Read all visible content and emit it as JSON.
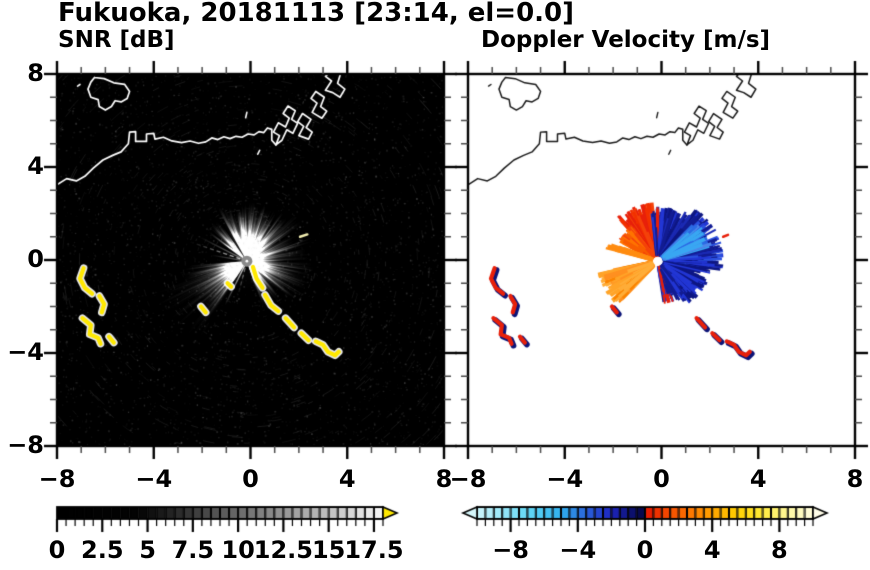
{
  "header": {
    "title": "Fukuoka, 20181113 [23:14, el=0.0]"
  },
  "panels": {
    "snr": {
      "subtitle": "SNR [dB]"
    },
    "doppler": {
      "subtitle": "Doppler Velocity [m/s]"
    }
  },
  "axes": {
    "range": [
      -8,
      8
    ],
    "major_ticks": [
      -8,
      -4,
      0,
      4,
      8
    ],
    "minor_step": 1,
    "x_labels": [
      "−8",
      "−4",
      "0",
      "4",
      "8"
    ],
    "y_labels": [
      "8",
      "4",
      "0",
      "−4",
      "−8"
    ],
    "y_values": [
      8,
      4,
      0,
      -4,
      -8
    ]
  },
  "colorbars": {
    "snr": {
      "min": 0,
      "max": 18,
      "segment": 0.5,
      "tick_values": [
        0,
        2.5,
        5,
        7.5,
        10,
        12.5,
        15,
        17.5
      ],
      "tick_labels": [
        "0",
        "2.5",
        "5",
        "7.5",
        "10",
        "12.5",
        "15",
        "17.5"
      ],
      "overflow_color": "#ffe800",
      "ramp": [
        [
          0,
          "#000000"
        ],
        [
          4.5,
          "#030303"
        ],
        [
          7.5,
          "#3a3a3a"
        ],
        [
          10,
          "#6a6a6a"
        ],
        [
          12.5,
          "#959595"
        ],
        [
          15,
          "#c0c0c0"
        ],
        [
          18,
          "#f6f6f6"
        ]
      ]
    },
    "doppler": {
      "min": -10,
      "max": 10,
      "segment": 0.5,
      "tick_values": [
        -8,
        -4,
        0,
        4,
        8
      ],
      "tick_labels": [
        "−8",
        "−4",
        "0",
        "4",
        "8"
      ],
      "underflow_color": "#d5f6fa",
      "overflow_color": "#fffde8",
      "ramp": [
        [
          -10,
          "#cdf4fa"
        ],
        [
          -7,
          "#63d9f6"
        ],
        [
          -5,
          "#2fb0ee"
        ],
        [
          -3.5,
          "#2a62da"
        ],
        [
          -2,
          "#1d25c0"
        ],
        [
          -0.8,
          "#0d1170"
        ],
        [
          -0.02,
          "#04063e"
        ],
        [
          0.02,
          "#e11400"
        ],
        [
          1,
          "#f23c00"
        ],
        [
          2.5,
          "#fe7000"
        ],
        [
          4,
          "#ffa200"
        ],
        [
          5.5,
          "#ffd000"
        ],
        [
          7,
          "#ffeb3a"
        ],
        [
          8.5,
          "#fff89e"
        ],
        [
          10,
          "#fffde0"
        ]
      ]
    }
  },
  "chart_data": {
    "type": "heatmap",
    "title": "Fukuoka, 20181113 [23:14, el=0.0]",
    "subplots": [
      "SNR [dB]",
      "Doppler Velocity [m/s]"
    ],
    "x_range": [
      -8,
      8
    ],
    "y_range": [
      -8,
      8
    ],
    "radar_center": [
      -0.15,
      -0.05
    ],
    "snr": {
      "background": "#000000",
      "center_disk_color": "#8a8a8a",
      "clutter_color": "#ffe800",
      "clutter_outline": "#ffffff",
      "noise": {
        "dots": 3200,
        "arcs": 900
      },
      "beam_sectors": [
        {
          "a0": 48,
          "a1": 118,
          "rmin": 0.8,
          "rmax": 2.6,
          "n": 180,
          "alpha": 0.5
        },
        {
          "a0": 112,
          "a1": 143,
          "rmin": 0.5,
          "rmax": 2.2,
          "n": 70,
          "alpha": 0.36
        },
        {
          "a0": -42,
          "a1": 48,
          "rmin": 0.7,
          "rmax": 2.9,
          "n": 160,
          "alpha": 0.3
        },
        {
          "a0": -70,
          "a1": -42,
          "rmin": 0.5,
          "rmax": 2.2,
          "n": 60,
          "alpha": 0.24
        },
        {
          "a0": 185,
          "a1": 237,
          "rmin": 0.7,
          "rmax": 2.8,
          "n": 120,
          "alpha": 0.3
        },
        {
          "a0": 198,
          "a1": 240,
          "rmin": 2.0,
          "rmax": 4.3,
          "n": 70,
          "alpha": 0.09
        },
        {
          "a0": 40,
          "a1": 122,
          "rmin": 0.22,
          "rmax": 1.05,
          "n": 140,
          "alpha": 0.6
        }
      ],
      "bright_rays": [
        {
          "a": 152,
          "r": 2.2,
          "alpha": 0.5,
          "dash": false
        },
        {
          "a": 160.5,
          "r": 2.5,
          "alpha": 0.85,
          "dash": true
        },
        {
          "a": 170,
          "r": 1.5,
          "alpha": 0.45,
          "dash": false
        },
        {
          "a": 188,
          "r": 1.9,
          "alpha": 0.4,
          "dash": false
        },
        {
          "a": 244.5,
          "r": 2.1,
          "alpha": 0.9,
          "dash": false
        },
        {
          "a": 256,
          "r": 1.6,
          "alpha": 0.5,
          "dash": true
        }
      ],
      "dark_wedges": [
        {
          "a0": 144,
          "a1": 159,
          "r": 3.2
        },
        {
          "a0": 162,
          "a1": 184,
          "r": 3.2
        },
        {
          "a0": 237,
          "a1": 243.5,
          "r": 3.0
        },
        {
          "a0": 245.5,
          "a1": 255,
          "r": 3.0
        },
        {
          "a0": 257,
          "a1": 287,
          "r": 3.4
        },
        {
          "a0": 119,
          "a1": 125,
          "r": 3.0
        }
      ]
    },
    "doppler": {
      "background": "#ffffff",
      "feature_red": "#e8200a",
      "feature_navy": "#0c1478",
      "velocity_sectors": [
        {
          "a0": 95,
          "a1": 132,
          "rmin": 0.8,
          "rmax": 2.55,
          "n": 160,
          "colors": [
            "#e8200a",
            "#f23000",
            "#f4420a"
          ]
        },
        {
          "a0": 128,
          "a1": 152,
          "rmin": 0.5,
          "rmax": 1.9,
          "n": 60,
          "colors": [
            "#f85c00",
            "#f4420a",
            "#ff7300"
          ]
        },
        {
          "a0": 60,
          "a1": 97,
          "rmin": 0.6,
          "rmax": 2.35,
          "n": 120,
          "colors": [
            "#121c92",
            "#1b2ab4",
            "#e8200a",
            "#2236d4",
            "#0d1682"
          ]
        },
        {
          "a0": -10,
          "a1": 62,
          "rmin": 0.8,
          "rmax": 2.75,
          "n": 230,
          "colors": [
            "#121c92",
            "#2236d4",
            "#2b51e0",
            "#1b2ab4",
            "#0d1682"
          ]
        },
        {
          "a0": 16,
          "a1": 48,
          "rmin": 1.5,
          "rmax": 2.35,
          "n": 34,
          "colors": [
            "#4f86ea",
            "#39a7f2",
            "#2b6ae4"
          ]
        },
        {
          "a0": -58,
          "a1": -8,
          "rmin": 0.5,
          "rmax": 2.25,
          "n": 130,
          "colors": [
            "#121c92",
            "#2236d4",
            "#0d1682"
          ]
        },
        {
          "a0": -82,
          "a1": -52,
          "rmin": 0.4,
          "rmax": 1.9,
          "n": 50,
          "colors": [
            "#121c92",
            "#e8200a",
            "#2236d4"
          ]
        },
        {
          "a0": 192,
          "a1": 228,
          "rmin": 0.7,
          "rmax": 2.55,
          "n": 150,
          "colors": [
            "#ff9020",
            "#ffa428",
            "#fb8400",
            "#ffad38"
          ]
        },
        {
          "a0": 159,
          "a1": 166,
          "rmin": 0.3,
          "rmax": 2.3,
          "n": 16,
          "colors": [
            "#ff8c10"
          ]
        }
      ]
    },
    "coastline": {
      "color_snr": "#ffffff",
      "color_doppler": "#1a1a1a",
      "main": [
        [
          -8.05,
          3.2
        ],
        [
          -7.6,
          3.5
        ],
        [
          -7.2,
          3.4
        ],
        [
          -6.85,
          3.6
        ],
        [
          -6.5,
          3.95
        ],
        [
          -6.1,
          4.3
        ],
        [
          -5.7,
          4.5
        ],
        [
          -5.35,
          4.65
        ],
        [
          -5.05,
          5.0
        ],
        [
          -5.0,
          5.5
        ],
        [
          -4.75,
          5.52
        ],
        [
          -4.75,
          5.1
        ],
        [
          -4.3,
          5.1
        ],
        [
          -4.3,
          5.42
        ],
        [
          -4.0,
          5.45
        ],
        [
          -3.95,
          5.2
        ],
        [
          -3.6,
          5.28
        ],
        [
          -3.25,
          5.12
        ],
        [
          -2.85,
          5.05
        ],
        [
          -2.5,
          5.12
        ],
        [
          -2.15,
          5.02
        ],
        [
          -1.85,
          5.08
        ],
        [
          -1.6,
          5.25
        ],
        [
          -1.35,
          5.18
        ],
        [
          -1.1,
          5.3
        ],
        [
          -0.85,
          5.22
        ],
        [
          -0.6,
          5.32
        ],
        [
          -0.35,
          5.28
        ],
        [
          -0.1,
          5.42
        ],
        [
          0.15,
          5.38
        ],
        [
          0.35,
          5.52
        ],
        [
          0.55,
          5.48
        ],
        [
          0.7,
          5.68
        ],
        [
          0.88,
          5.62
        ],
        [
          0.88,
          5.15
        ],
        [
          1.05,
          4.95
        ]
      ],
      "island": [
        [
          -6.45,
          7.85
        ],
        [
          -6.05,
          7.8
        ],
        [
          -5.65,
          7.62
        ],
        [
          -5.2,
          7.55
        ],
        [
          -5.0,
          7.25
        ],
        [
          -5.1,
          6.95
        ],
        [
          -5.35,
          6.8
        ],
        [
          -5.6,
          6.85
        ],
        [
          -5.75,
          6.6
        ],
        [
          -6.0,
          6.45
        ],
        [
          -6.25,
          6.6
        ],
        [
          -6.3,
          6.9
        ],
        [
          -6.6,
          7.0
        ],
        [
          -6.72,
          7.35
        ],
        [
          -6.6,
          7.65
        ],
        [
          -6.45,
          7.85
        ]
      ],
      "port": [
        [
          [
            1.05,
            4.95
          ],
          [
            1.2,
            5.35
          ],
          [
            0.95,
            5.5
          ],
          [
            1.15,
            5.9
          ],
          [
            1.45,
            5.72
          ],
          [
            1.6,
            6.1
          ],
          [
            1.35,
            6.3
          ],
          [
            1.55,
            6.62
          ],
          [
            1.85,
            6.42
          ],
          [
            1.7,
            6.05
          ],
          [
            1.95,
            5.88
          ],
          [
            1.75,
            5.45
          ],
          [
            1.5,
            5.6
          ],
          [
            1.3,
            5.15
          ],
          [
            1.05,
            4.95
          ]
        ],
        [
          [
            2.0,
            5.35
          ],
          [
            2.2,
            5.75
          ],
          [
            1.95,
            5.95
          ],
          [
            2.15,
            6.3
          ],
          [
            2.5,
            6.05
          ],
          [
            2.3,
            5.7
          ],
          [
            2.55,
            5.5
          ],
          [
            2.4,
            5.2
          ],
          [
            2.0,
            5.35
          ]
        ],
        [
          [
            2.55,
            6.35
          ],
          [
            2.75,
            6.75
          ],
          [
            2.5,
            6.95
          ],
          [
            2.7,
            7.25
          ],
          [
            3.05,
            7.0
          ],
          [
            2.9,
            6.6
          ],
          [
            3.15,
            6.4
          ],
          [
            2.95,
            6.1
          ],
          [
            2.55,
            6.35
          ]
        ],
        [
          [
            3.1,
            7.3
          ],
          [
            3.35,
            7.7
          ],
          [
            3.1,
            7.9
          ],
          [
            3.3,
            8.1
          ],
          [
            3.75,
            8.1
          ],
          [
            3.6,
            7.6
          ],
          [
            3.9,
            7.35
          ],
          [
            3.7,
            7.0
          ],
          [
            3.4,
            7.2
          ],
          [
            3.1,
            7.3
          ]
        ]
      ],
      "marks": [
        [
          [
            -0.2,
            6.12
          ],
          [
            -0.15,
            6.35
          ]
        ],
        [
          [
            -7.15,
            7.48
          ],
          [
            -7.05,
            7.55
          ]
        ],
        [
          [
            0.3,
            4.55
          ],
          [
            0.38,
            4.72
          ]
        ]
      ]
    },
    "clutter_paths": {
      "west_group": [
        [
          [
            -6.9,
            -0.35
          ],
          [
            -7.05,
            -0.8
          ],
          [
            -6.85,
            -1.2
          ],
          [
            -6.55,
            -1.45
          ]
        ],
        [
          [
            -6.25,
            -1.55
          ],
          [
            -6.05,
            -1.9
          ],
          [
            -6.15,
            -2.25
          ]
        ],
        [
          [
            -6.95,
            -2.5
          ],
          [
            -6.6,
            -2.8
          ],
          [
            -6.65,
            -3.2
          ],
          [
            -6.3,
            -3.35
          ],
          [
            -6.2,
            -3.6
          ]
        ],
        [
          [
            -5.85,
            -3.3
          ],
          [
            -5.65,
            -3.55
          ]
        ]
      ],
      "south_chain": [
        [
          [
            0.1,
            -0.3
          ],
          [
            0.25,
            -0.8
          ],
          [
            0.5,
            -1.2
          ]
        ],
        [
          [
            0.6,
            -1.5
          ],
          [
            0.85,
            -1.95
          ],
          [
            1.15,
            -2.2
          ]
        ],
        [
          [
            1.45,
            -2.5
          ],
          [
            1.8,
            -2.9
          ]
        ],
        [
          [
            2.1,
            -3.15
          ],
          [
            2.4,
            -3.45
          ]
        ],
        [
          [
            2.7,
            -3.5
          ],
          [
            3.0,
            -3.65
          ],
          [
            3.2,
            -3.95
          ],
          [
            3.5,
            -4.1
          ],
          [
            3.65,
            -3.95
          ]
        ],
        [
          [
            -2.05,
            -2.0
          ],
          [
            -1.85,
            -2.25
          ]
        ],
        [
          [
            -0.95,
            -1.0
          ],
          [
            -0.8,
            -1.15
          ]
        ]
      ],
      "bright_dash": [
        [
          [
            2.05,
            1.0
          ],
          [
            2.35,
            1.1
          ]
        ]
      ],
      "doppler_red_dash": [
        [
          [
            2.55,
            1.0
          ],
          [
            2.75,
            1.08
          ]
        ]
      ]
    }
  }
}
